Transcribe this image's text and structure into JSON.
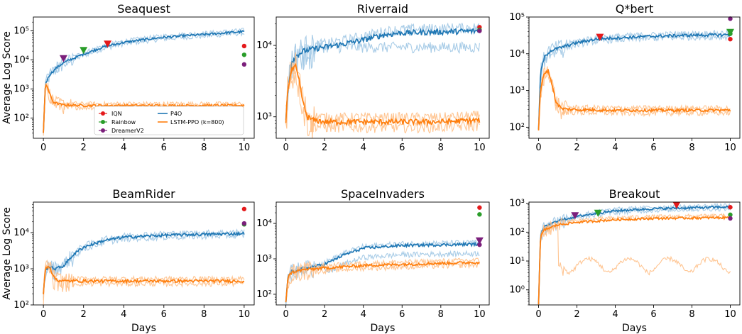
{
  "colors": {
    "IQN": "#e41a1c",
    "Rainbow": "#2a9d2a",
    "DreamerV2": "#7b1f7b",
    "P4O": "#1f77b4",
    "P4O_light": "#9ec6e4",
    "LSTM": "#ff7f0e",
    "LSTM_light": "#ffbf86"
  },
  "figure": {
    "ylabel": "Average Log Score",
    "xlabel": "Days"
  },
  "legend": [
    {
      "label": "IQN",
      "kind": "dot",
      "color": "#e41a1c"
    },
    {
      "label": "Rainbow",
      "kind": "dot",
      "color": "#2a9d2a"
    },
    {
      "label": "DreamerV2",
      "kind": "dot",
      "color": "#7b1f7b"
    },
    {
      "label": "P4O",
      "kind": "line",
      "color": "#1f77b4"
    },
    {
      "label": "LSTM-PPO (k=800)",
      "kind": "line",
      "color": "#ff7f0e"
    }
  ],
  "chart_data": [
    {
      "type": "line",
      "title": "Seaquest",
      "yscale": "log",
      "ylim": [
        20,
        300000
      ],
      "xlim": [
        -0.5,
        10.5
      ],
      "xticks": [
        0,
        2,
        4,
        6,
        8,
        10
      ],
      "yticks": [
        100,
        1000,
        10000,
        100000
      ],
      "ytick_labels": [
        "10²",
        "10³",
        "10⁴",
        "10⁵"
      ],
      "show_ylabel": true,
      "show_xlabel": false,
      "legend": "lower-center",
      "series": [
        {
          "name": "P4O",
          "x": [
            0,
            0.1,
            0.3,
            0.6,
            1,
            2,
            3,
            4,
            5,
            6,
            7,
            8,
            9,
            10
          ],
          "values": [
            30,
            1500,
            3000,
            5000,
            8000,
            16000,
            28000,
            40000,
            50000,
            60000,
            68000,
            75000,
            85000,
            95000
          ]
        },
        {
          "name": "LSTM-PPO (k=800)",
          "x": [
            0,
            0.1,
            0.2,
            0.3,
            0.5,
            0.8,
            1,
            2,
            4,
            6,
            8,
            10
          ],
          "values": [
            30,
            1500,
            1200,
            700,
            350,
            300,
            280,
            270,
            270,
            270,
            270,
            270
          ]
        }
      ],
      "baselines": [
        {
          "name": "IQN",
          "x": 10,
          "value": 30000
        },
        {
          "name": "Rainbow",
          "x": 10,
          "value": 15000
        },
        {
          "name": "DreamerV2",
          "x": 10,
          "value": 7000
        }
      ],
      "markers": [
        {
          "name": "DreamerV2",
          "x": 1.0,
          "value": 11000
        },
        {
          "name": "Rainbow",
          "x": 2.0,
          "value": 21000
        },
        {
          "name": "IQN",
          "x": 3.2,
          "value": 35000
        }
      ]
    },
    {
      "type": "line",
      "title": "Riverraid",
      "yscale": "log",
      "ylim": [
        500,
        25000
      ],
      "xlim": [
        -0.5,
        10.5
      ],
      "xticks": [
        0,
        2,
        4,
        6,
        8,
        10
      ],
      "yticks": [
        1000,
        10000
      ],
      "ytick_labels": [
        "10³",
        "10⁴"
      ],
      "show_ylabel": false,
      "show_xlabel": false,
      "series": [
        {
          "name": "P4O",
          "x": [
            0,
            0.1,
            0.3,
            0.6,
            1,
            2,
            3,
            4,
            5,
            6,
            8,
            10
          ],
          "values": [
            900,
            2500,
            6000,
            7500,
            8500,
            9500,
            10500,
            12000,
            14000,
            15000,
            15500,
            16000
          ]
        },
        {
          "name": "LSTM-PPO (k=800)",
          "x": [
            0,
            0.1,
            0.3,
            0.5,
            0.7,
            0.9,
            1.1,
            1.4,
            2,
            4,
            6,
            8,
            10
          ],
          "values": [
            900,
            2500,
            4500,
            5000,
            3000,
            1500,
            1000,
            900,
            850,
            850,
            850,
            850,
            900
          ]
        }
      ],
      "baselines": [
        {
          "name": "IQN",
          "x": 10,
          "value": 18000
        },
        {
          "name": "Rainbow",
          "x": 10,
          "value": 16500
        },
        {
          "name": "DreamerV2",
          "x": 10,
          "value": 16000
        }
      ],
      "markers": []
    },
    {
      "type": "line",
      "title": "Q*bert",
      "yscale": "log",
      "ylim": [
        50,
        100000
      ],
      "xlim": [
        -0.5,
        10.5
      ],
      "xticks": [
        0,
        2,
        4,
        6,
        8,
        10
      ],
      "yticks": [
        100,
        1000,
        10000,
        100000
      ],
      "ytick_labels": [
        "10²",
        "10³",
        "10⁴",
        "10⁵"
      ],
      "show_ylabel": false,
      "show_xlabel": false,
      "series": [
        {
          "name": "P4O",
          "x": [
            0,
            0.1,
            0.3,
            0.6,
            1,
            2,
            3,
            4,
            6,
            8,
            10
          ],
          "values": [
            80,
            3000,
            8000,
            12000,
            14000,
            20000,
            25000,
            27000,
            30000,
            32000,
            33000
          ]
        },
        {
          "name": "LSTM-PPO (k=800)",
          "x": [
            0,
            0.1,
            0.3,
            0.5,
            0.7,
            0.9,
            1.2,
            2,
            4,
            6,
            8,
            10
          ],
          "values": [
            80,
            1000,
            3000,
            3500,
            1500,
            500,
            320,
            300,
            290,
            290,
            290,
            290
          ]
        }
      ],
      "baselines": [
        {
          "name": "IQN",
          "x": 10,
          "value": 25000
        },
        {
          "name": "Rainbow",
          "x": 10,
          "value": 35000
        },
        {
          "name": "DreamerV2",
          "x": 10,
          "value": 90000
        }
      ],
      "markers": [
        {
          "name": "IQN",
          "x": 3.2,
          "value": 28000
        },
        {
          "name": "Rainbow",
          "x": 10,
          "value": 38000
        }
      ]
    },
    {
      "type": "line",
      "title": "BeamRider",
      "yscale": "log",
      "ylim": [
        100,
        70000
      ],
      "xlim": [
        -0.5,
        10.5
      ],
      "xticks": [
        0,
        2,
        4,
        6,
        8,
        10
      ],
      "yticks": [
        100,
        1000,
        10000
      ],
      "ytick_labels": [
        "10²",
        "10³",
        "10⁴"
      ],
      "show_ylabel": true,
      "show_xlabel": false,
      "series": [
        {
          "name": "P4O",
          "x": [
            0,
            0.1,
            0.3,
            0.6,
            1,
            1.5,
            2,
            3,
            4,
            6,
            8,
            10
          ],
          "values": [
            200,
            1000,
            1100,
            1000,
            1200,
            2500,
            4000,
            6000,
            7500,
            8500,
            9000,
            9500
          ]
        },
        {
          "name": "LSTM-PPO (k=800)",
          "x": [
            0,
            0.1,
            0.3,
            0.5,
            0.7,
            1,
            2,
            4,
            6,
            8,
            10
          ],
          "values": [
            200,
            1100,
            1200,
            600,
            480,
            460,
            460,
            460,
            460,
            460,
            460
          ]
        }
      ],
      "baselines": [
        {
          "name": "IQN",
          "x": 10,
          "value": 45000
        },
        {
          "name": "Rainbow",
          "x": 10,
          "value": 17000
        },
        {
          "name": "DreamerV2",
          "x": 10,
          "value": 18000
        }
      ],
      "markers": []
    },
    {
      "type": "line",
      "title": "SpaceInvaders",
      "yscale": "log",
      "ylim": [
        50,
        40000
      ],
      "xlim": [
        -0.5,
        10.5
      ],
      "xticks": [
        0,
        2,
        4,
        6,
        8,
        10
      ],
      "yticks": [
        100,
        1000,
        10000
      ],
      "ytick_labels": [
        "10²",
        "10³",
        "10⁴"
      ],
      "show_ylabel": false,
      "show_xlabel": true,
      "series": [
        {
          "name": "P4O",
          "x": [
            0,
            0.1,
            0.3,
            1,
            2,
            3,
            4,
            5,
            6,
            8,
            10
          ],
          "values": [
            60,
            300,
            450,
            550,
            700,
            1300,
            2000,
            2200,
            2400,
            2500,
            2600
          ]
        },
        {
          "name": "LSTM-PPO (k=800)",
          "x": [
            0,
            0.1,
            0.3,
            1,
            2,
            4,
            6,
            8,
            10
          ],
          "values": [
            60,
            300,
            420,
            500,
            550,
            650,
            700,
            750,
            800
          ]
        }
      ],
      "baselines": [
        {
          "name": "IQN",
          "x": 10,
          "value": 28000
        },
        {
          "name": "Rainbow",
          "x": 10,
          "value": 18000
        },
        {
          "name": "DreamerV2",
          "x": 10,
          "value": 2500
        }
      ],
      "markers": [
        {
          "name": "DreamerV2",
          "x": 10,
          "value": 3200
        }
      ]
    },
    {
      "type": "line",
      "title": "Breakout",
      "yscale": "log",
      "ylim": [
        0.3,
        1100
      ],
      "xlim": [
        -0.5,
        10.5
      ],
      "xticks": [
        0,
        2,
        4,
        6,
        8,
        10
      ],
      "yticks": [
        1,
        10,
        100,
        1000
      ],
      "ytick_labels": [
        "10⁰",
        "10¹",
        "10²",
        "10³"
      ],
      "show_ylabel": false,
      "show_xlabel": false,
      "series": [
        {
          "name": "P4O",
          "x": [
            0,
            0.1,
            0.3,
            1,
            2,
            3,
            4,
            5,
            6,
            8,
            10
          ],
          "values": [
            0.3,
            80,
            150,
            250,
            350,
            450,
            550,
            600,
            650,
            700,
            750
          ]
        },
        {
          "name": "LSTM-PPO (k=800)",
          "x": [
            0,
            0.1,
            0.3,
            1,
            2,
            4,
            6,
            8,
            10
          ],
          "values": [
            0.3,
            70,
            120,
            180,
            220,
            270,
            300,
            310,
            320
          ]
        }
      ],
      "baselines": [
        {
          "name": "IQN",
          "x": 10,
          "value": 730
        },
        {
          "name": "Rainbow",
          "x": 10,
          "value": 400
        },
        {
          "name": "DreamerV2",
          "x": 10,
          "value": 300
        }
      ],
      "markers": [
        {
          "name": "DreamerV2",
          "x": 1.9,
          "value": 370
        },
        {
          "name": "Rainbow",
          "x": 3.1,
          "value": 450
        },
        {
          "name": "IQN",
          "x": 7.2,
          "value": 850
        }
      ]
    }
  ]
}
